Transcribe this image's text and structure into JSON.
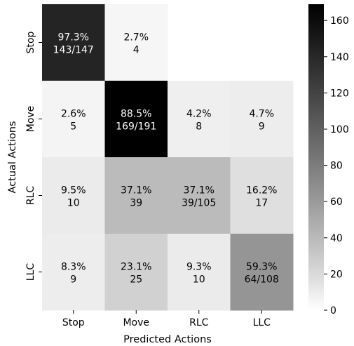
{
  "chart_data": {
    "type": "heatmap",
    "title": "",
    "xlabel": "Predicted Actions",
    "ylabel": "Actual Actions",
    "x_categories": [
      "Stop",
      "Move",
      "RLC",
      "LLC"
    ],
    "y_categories": [
      "Stop",
      "Move",
      "RLC",
      "LLC"
    ],
    "counts": [
      [
        143,
        4,
        null,
        null
      ],
      [
        5,
        169,
        8,
        9
      ],
      [
        10,
        39,
        39,
        17
      ],
      [
        9,
        25,
        10,
        64
      ]
    ],
    "cell_labels": [
      [
        {
          "pct": "97.3%",
          "count": "143/147"
        },
        {
          "pct": "2.7%",
          "count": "4"
        },
        null,
        null
      ],
      [
        {
          "pct": "2.6%",
          "count": "5"
        },
        {
          "pct": "88.5%",
          "count": "169/191"
        },
        {
          "pct": "4.2%",
          "count": "8"
        },
        {
          "pct": "4.7%",
          "count": "9"
        }
      ],
      [
        {
          "pct": "9.5%",
          "count": "10"
        },
        {
          "pct": "37.1%",
          "count": "39"
        },
        {
          "pct": "37.1%",
          "count": "39/105"
        },
        {
          "pct": "16.2%",
          "count": "17"
        }
      ],
      [
        {
          "pct": "8.3%",
          "count": "9"
        },
        {
          "pct": "23.1%",
          "count": "25"
        },
        {
          "pct": "9.3%",
          "count": "10"
        },
        {
          "pct": "59.3%",
          "count": "64/108"
        }
      ]
    ],
    "colorbar": {
      "min": 0,
      "max": 169,
      "ticks": [
        "0",
        "20",
        "40",
        "60",
        "80",
        "100",
        "120",
        "140",
        "160"
      ],
      "colormap": "greys",
      "low_color": "#ffffff",
      "high_color": "#000000"
    },
    "grid": false,
    "legend": "colorbar-right"
  }
}
